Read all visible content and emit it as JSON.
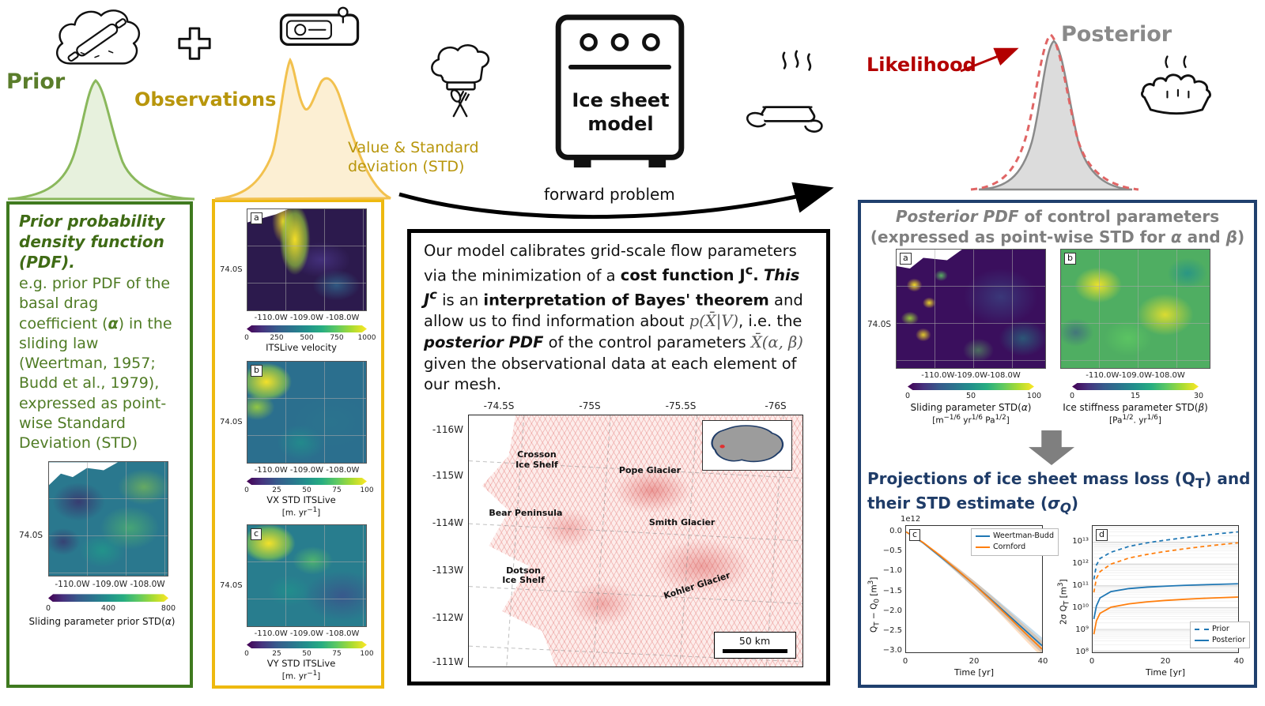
{
  "top": {
    "prior": "Prior",
    "observations": "Observations",
    "value_std_html": "Value &amp; Standard<br>deviation (STD)",
    "forward_problem": "forward problem",
    "likelihood": "Likelihood",
    "posterior": "Posterior",
    "oven_html": "Ice sheet<br>model"
  },
  "prior_box": {
    "title_html": "Prior probability density function (PDF).",
    "body_html": "e.g. prior PDF of the basal drag coefficient (<b><i>α</i></b>) in the sliding law (Weertman, 1957; Budd et al., 1979), expressed as point-wise Standard Deviation (STD)",
    "map": {
      "ytick": "74.0S",
      "xticks": "-110.0W -109.0W -108.0W",
      "cb_ticks": [
        "0",
        "400",
        "800"
      ],
      "cb_label_html": "Sliding parameter prior STD(<i>α</i>)"
    }
  },
  "obs_box": {
    "panels": [
      {
        "letter": "a",
        "ytick": "74.0S",
        "xticks": "-110.0W -109.0W -108.0W",
        "cb_ticks": [
          "0",
          "250",
          "500",
          "750",
          "1000"
        ],
        "label_html": "ITSLive velocity"
      },
      {
        "letter": "b",
        "ytick": "74.0S",
        "xticks": "-110.0W -109.0W -108.0W",
        "cb_ticks": [
          "0",
          "25",
          "50",
          "75",
          "100"
        ],
        "label_html": "VX STD ITSLive",
        "unit_html": "[m. yr<sup>−1</sup>]"
      },
      {
        "letter": "c",
        "ytick": "74.0S",
        "xticks": "-110.0W -109.0W -108.0W",
        "cb_ticks": [
          "0",
          "25",
          "50",
          "75",
          "100"
        ],
        "label_html": "VY STD ITSLive",
        "unit_html": "[m. yr<sup>−1</sup>]"
      }
    ]
  },
  "center_box": {
    "paragraph_html": "Our model calibrates grid-scale flow parameters via the minimization of a <b>cost function J<sup>c</sup>.</b> <b><i>This J<sup>c</sup></i></b> is an <b>interpretation of Bayes' theorem</b> and allow us to find information about <span class='math'>p(X̄|V)</span>, i.e. the <b><i>posterior PDF</i></b> of the control parameters <span class='math'>X̄(α, β)</span> given the observational data at each element of our mesh.",
    "map": {
      "top_ticks": [
        "-74.5S",
        "-75S",
        "-75.5S",
        "-76S"
      ],
      "left_ticks": [
        "-116W",
        "-115W",
        "-114W",
        "-113W",
        "-112W",
        "-111W"
      ],
      "labels": {
        "crosson_html": "Crosson<br>Ice Shelf",
        "pope": "Pope Glacier",
        "bear": "Bear Peninsula",
        "smith": "Smith Glacier",
        "dotson_html": "Dotson<br>Ice Shelf",
        "kohler": "Kohler Glacier"
      },
      "scalebar": "50 km"
    }
  },
  "post_box": {
    "title_html": "<i>Posterior PDF</i> of control parameters<br>(expressed as point-wise STD for <i>α</i> and <i>β</i>)",
    "panels": [
      {
        "letter": "a",
        "ytick": "74.0S",
        "xticks": "-110.0W-109.0W-108.0W",
        "cb_ticks": [
          "0",
          "50",
          "100"
        ],
        "label_html": "Sliding parameter STD(<i>α</i>)",
        "unit_html": "[m<sup>−1/6</sup> yr<sup>1/6</sup> Pa<sup>1/2</sup>]"
      },
      {
        "letter": "b",
        "xticks": "-110.0W-109.0W-108.0W",
        "cb_ticks": [
          "0",
          "15",
          "30"
        ],
        "label_html": "Ice stiffness parameter STD(<i>β</i>)",
        "unit_html": "[Pa<sup>1/2</sup>. yr<sup>1/6</sup>]"
      }
    ],
    "projections_title_html": "Projections of ice sheet mass loss (Q<sub>T</sub>) and<br>their STD estimate (<i>σ<sub>Q</sub></i>)"
  },
  "chart_data": [
    {
      "id": "mass-loss-projection",
      "type": "line",
      "panel": "c",
      "scale_note": "1e12",
      "xlabel": "Time [yr]",
      "ylabel_html": "Q<sub>T</sub> − Q<sub>0</sub> [m<sup>3</sup>]",
      "xlim": [
        0,
        40
      ],
      "ylim": [
        -3050000000000.0,
        150000000000.0
      ],
      "ytick_labels": [
        "0.0",
        "−0.5",
        "−1.0",
        "−1.5",
        "−2.0",
        "−2.5",
        "−3.0"
      ],
      "xtick_labels": [
        "0",
        "20",
        "40"
      ],
      "legend_position": "upper right",
      "x": [
        0,
        5,
        10,
        15,
        20,
        25,
        30,
        35,
        40
      ],
      "series": [
        {
          "name": "Weertman-Budd",
          "color": "#1f77b4",
          "style": "solid",
          "values": [
            0,
            -280000000000.0,
            -620000000000.0,
            -970000000000.0,
            -1330000000000.0,
            -1710000000000.0,
            -2100000000000.0,
            -2490000000000.0,
            -2880000000000.0
          ]
        },
        {
          "name": "Cornford",
          "color": "#ff7f0e",
          "style": "solid",
          "values": [
            0,
            -270000000000.0,
            -600000000000.0,
            -960000000000.0,
            -1330000000000.0,
            -1730000000000.0,
            -2140000000000.0,
            -2560000000000.0,
            -2970000000000.0
          ]
        }
      ]
    },
    {
      "id": "std-projection",
      "type": "line",
      "panel": "d",
      "xlabel": "Time [yr]",
      "ylabel_html": "2σ Q<sub>T</sub> [m<sup>3</sup>]",
      "xlim": [
        0,
        40
      ],
      "ylog10_lim": [
        7.95,
        13.75
      ],
      "ytick_labels": [
        "10¹³",
        "10¹²",
        "10¹¹",
        "10¹⁰",
        "10⁹",
        "10⁸"
      ],
      "xtick_labels": [
        "0",
        "20",
        "40"
      ],
      "grid": true,
      "legend_labels": [
        "Prior",
        "Posterior"
      ],
      "legend_position": "lower right",
      "x": [
        0.3,
        1,
        2,
        5,
        10,
        15,
        20,
        25,
        30,
        35,
        40
      ],
      "series": [
        {
          "name": "Prior Weertman-Budd",
          "color": "#1f77b4",
          "style": "dashed",
          "values": [
            200000000000.0,
            900000000000.0,
            1800000000000.0,
            3500000000000.0,
            6500000000000.0,
            9500000000000.0,
            12500000000000.0,
            16000000000000.0,
            20000000000000.0,
            25000000000000.0,
            30000000000000.0
          ]
        },
        {
          "name": "Prior Cornford",
          "color": "#ff7f0e",
          "style": "dashed",
          "values": [
            50000000000.0,
            220000000000.0,
            450000000000.0,
            1000000000000.0,
            1900000000000.0,
            2800000000000.0,
            3800000000000.0,
            5000000000000.0,
            6300000000000.0,
            7800000000000.0,
            9500000000000.0
          ]
        },
        {
          "name": "Posterior Weertman-Budd",
          "color": "#1f77b4",
          "style": "solid",
          "values": [
            3000000000.0,
            12000000000.0,
            28000000000.0,
            55000000000.0,
            75000000000.0,
            88000000000.0,
            97000000000.0,
            105000000000.0,
            112000000000.0,
            118000000000.0,
            124000000000.0
          ]
        },
        {
          "name": "Posterior Cornford",
          "color": "#ff7f0e",
          "style": "solid",
          "values": [
            600000000.0,
            2500000000.0,
            5500000000.0,
            10500000000.0,
            15000000000.0,
            18500000000.0,
            21500000000.0,
            24000000000.0,
            26500000000.0,
            28500000000.0,
            30500000000.0
          ]
        }
      ]
    }
  ]
}
